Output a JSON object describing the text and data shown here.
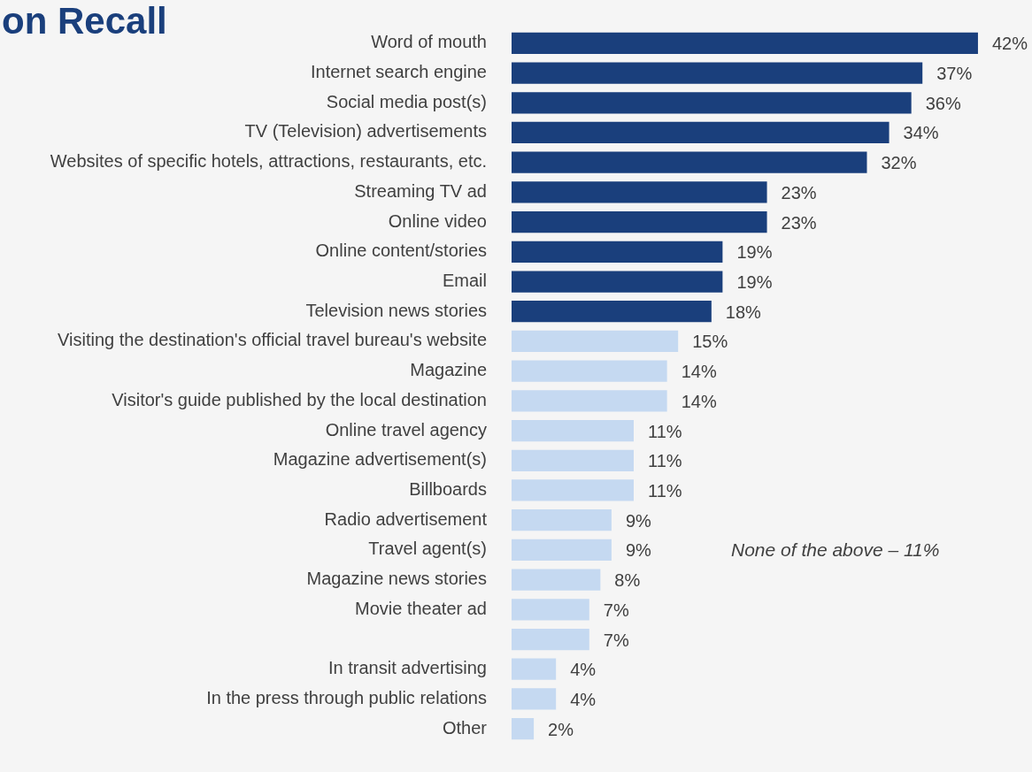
{
  "chart_data": {
    "type": "bar",
    "orientation": "horizontal",
    "title": "on Recall",
    "categories": [
      "Word of mouth",
      "Internet search engine",
      "Social media post(s)",
      "TV (Television) advertisements",
      "Websites of specific hotels, attractions, restaurants, etc.",
      "Streaming TV ad",
      "Online video",
      "Online content/stories",
      "Email",
      "Television news stories",
      "Visiting the destination's official travel bureau's website",
      "Magazine",
      "Visitor's guide published by the local destination",
      "Online travel agency",
      "Magazine advertisement(s)",
      "Billboards",
      "Radio advertisement",
      "Travel agent(s)",
      "Magazine news stories",
      "Movie theater ad",
      null,
      "In transit advertising",
      "In the press through public relations",
      "Other"
    ],
    "values": [
      42,
      37,
      36,
      34,
      32,
      23,
      23,
      19,
      19,
      18,
      15,
      14,
      14,
      11,
      11,
      11,
      9,
      9,
      8,
      7,
      7,
      4,
      4,
      2
    ],
    "value_labels": [
      "42%",
      "37%",
      "36%",
      "34%",
      "32%",
      "23%",
      "23%",
      "19%",
      "19%",
      "18%",
      "15%",
      "14%",
      "14%",
      "11%",
      "11%",
      "11%",
      "9%",
      "9%",
      "8%",
      "7%",
      "7%",
      "4%",
      "4%",
      "2%"
    ],
    "colors": [
      "#1a3f7c",
      "#1a3f7c",
      "#1a3f7c",
      "#1a3f7c",
      "#1a3f7c",
      "#1a3f7c",
      "#1a3f7c",
      "#1a3f7c",
      "#1a3f7c",
      "#1a3f7c",
      "#c5d9f1",
      "#c5d9f1",
      "#c5d9f1",
      "#c5d9f1",
      "#c5d9f1",
      "#c5d9f1",
      "#c5d9f1",
      "#c5d9f1",
      "#c5d9f1",
      "#c5d9f1",
      "#c5d9f1",
      "#c5d9f1",
      "#c5d9f1",
      "#c5d9f1"
    ],
    "annotations": [
      "None of the above – 11%"
    ],
    "legend": false
  }
}
